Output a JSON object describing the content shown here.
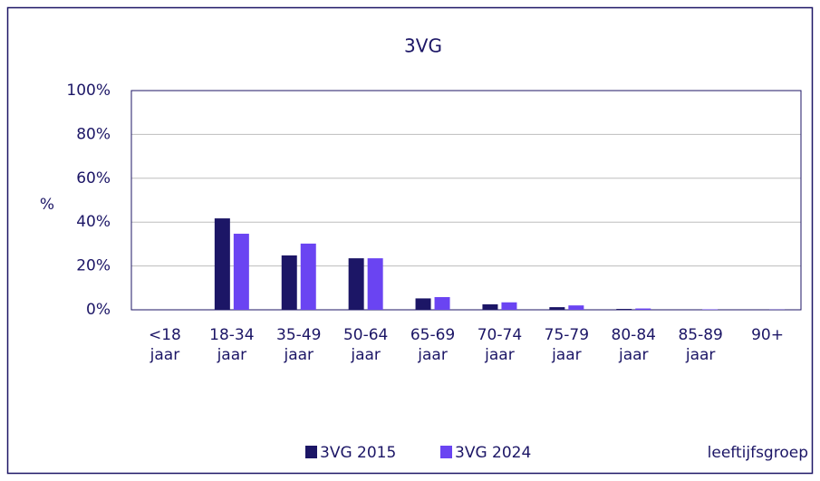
{
  "chart_data": {
    "type": "bar",
    "title": "3VG",
    "y_label": "%",
    "x_label": "leeftijfsgroep",
    "categories": [
      "<18 jaar",
      "18-34 jaar",
      "35-49 jaar",
      "50-64 jaar",
      "65-69 jaar",
      "70-74 jaar",
      "75-79 jaar",
      "80-84 jaar",
      "85-89 jaar",
      "90+"
    ],
    "series": [
      {
        "name": "3VG 2015",
        "color": "#1c1666",
        "values": [
          0,
          41.7,
          24.8,
          23.5,
          5.2,
          2.5,
          1.2,
          0.4,
          0.1,
          0
        ]
      },
      {
        "name": "3VG 2024",
        "color": "#6a44f2",
        "values": [
          0,
          34.7,
          30.2,
          23.5,
          5.8,
          3.4,
          2.0,
          0.6,
          0.2,
          0.1
        ]
      }
    ],
    "ylim": [
      0,
      100
    ],
    "yticks": [
      {
        "value": 0,
        "label": "0%"
      },
      {
        "value": 20,
        "label": "20%"
      },
      {
        "value": 40,
        "label": "40%"
      },
      {
        "value": 60,
        "label": "60%"
      },
      {
        "value": 80,
        "label": "80%"
      },
      {
        "value": 100,
        "label": "100%"
      }
    ],
    "grid": true
  }
}
